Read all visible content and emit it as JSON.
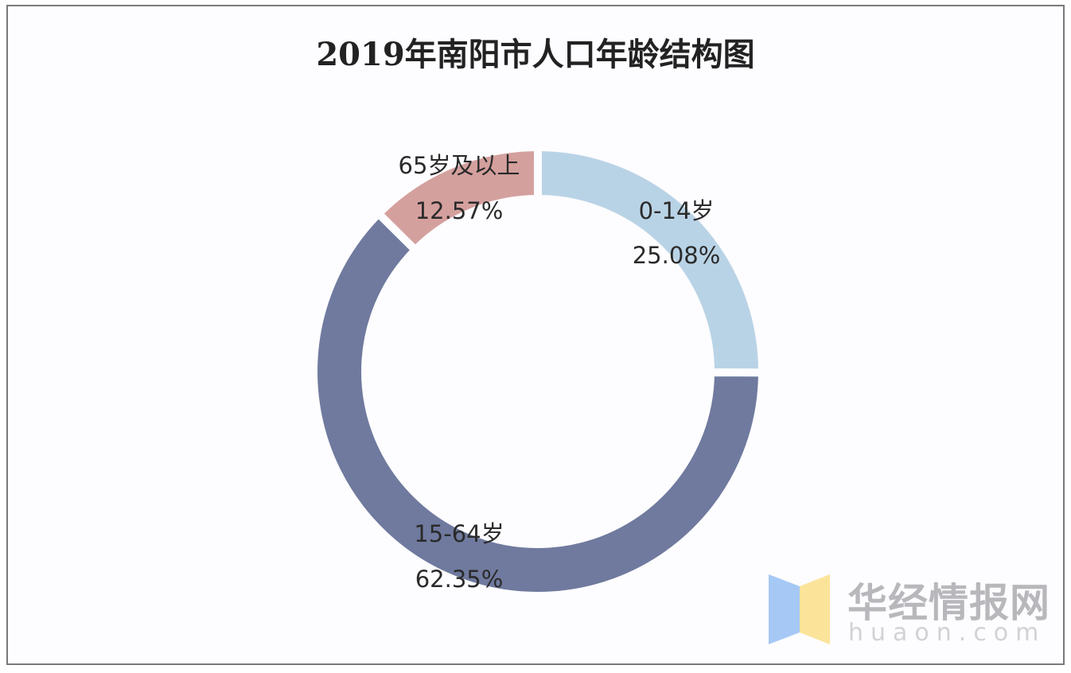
{
  "chart_data": {
    "type": "pie",
    "variant": "donut",
    "title": "2019年南阳市人口年龄结构图",
    "slices": [
      {
        "label": "0-14岁",
        "value": 25.08,
        "display": "25.08%",
        "color": "#b9d3e6"
      },
      {
        "label": "15-64岁",
        "value": 62.35,
        "display": "62.35%",
        "color": "#6f7a9e"
      },
      {
        "label": "65岁及以上",
        "value": 12.57,
        "display": "12.57%",
        "color": "#d4a09e"
      }
    ],
    "start": "12 o'clock",
    "direction": "clockwise",
    "legend": "none"
  },
  "watermark": {
    "name": "华经情报网",
    "domain": "huaon.com",
    "colors": [
      "#a6c8f5",
      "#fbe49a"
    ]
  }
}
